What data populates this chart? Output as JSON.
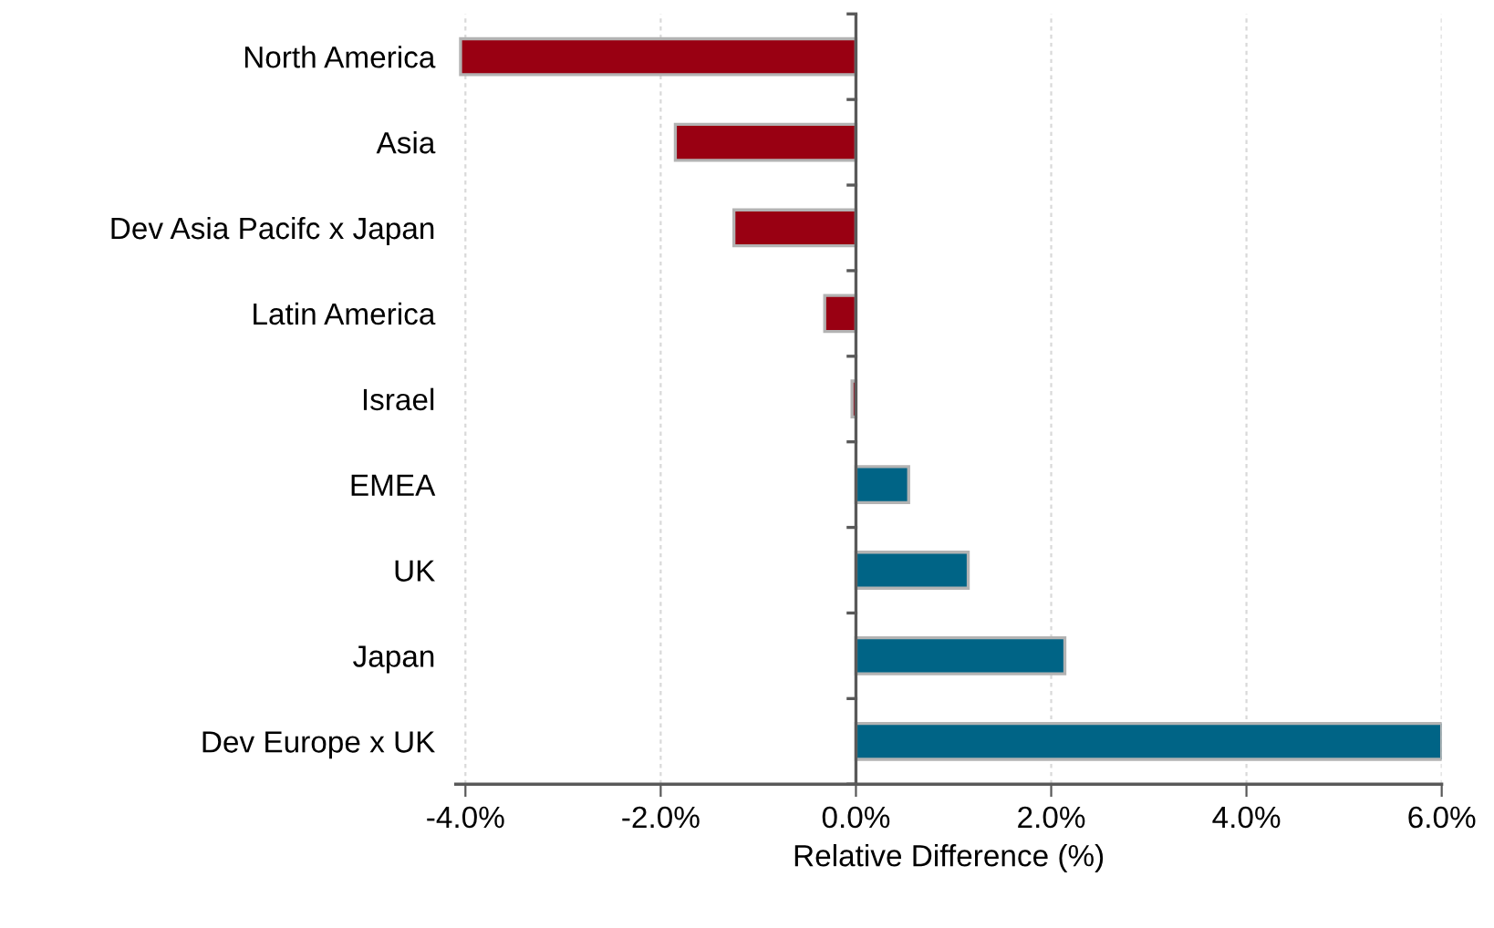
{
  "chart_data": {
    "type": "bar",
    "orientation": "horizontal",
    "categories": [
      "North America",
      "Asia",
      "Dev Asia Pacifc x Japan",
      "Latin America",
      "Israel",
      "EMEA",
      "UK",
      "Japan",
      "Dev Europe x UK"
    ],
    "values": [
      -4.05,
      -1.85,
      -1.25,
      -0.32,
      -0.04,
      0.54,
      1.15,
      2.14,
      6.0
    ],
    "colors": [
      "#990012",
      "#990012",
      "#990012",
      "#990012",
      "#990012",
      "#006486",
      "#006486",
      "#006486",
      "#006486"
    ],
    "xlabel": "Relative Difference (%)",
    "xlim": [
      -4.1,
      6.0
    ],
    "xticks": [
      {
        "value": -4,
        "label": "-4.0%"
      },
      {
        "value": -2,
        "label": "-2.0%"
      },
      {
        "value": 0,
        "label": "0.0%"
      },
      {
        "value": 2,
        "label": "2.0%"
      },
      {
        "value": 4,
        "label": "4.0%"
      },
      {
        "value": 6,
        "label": "6.0%"
      }
    ],
    "grid": "x"
  }
}
